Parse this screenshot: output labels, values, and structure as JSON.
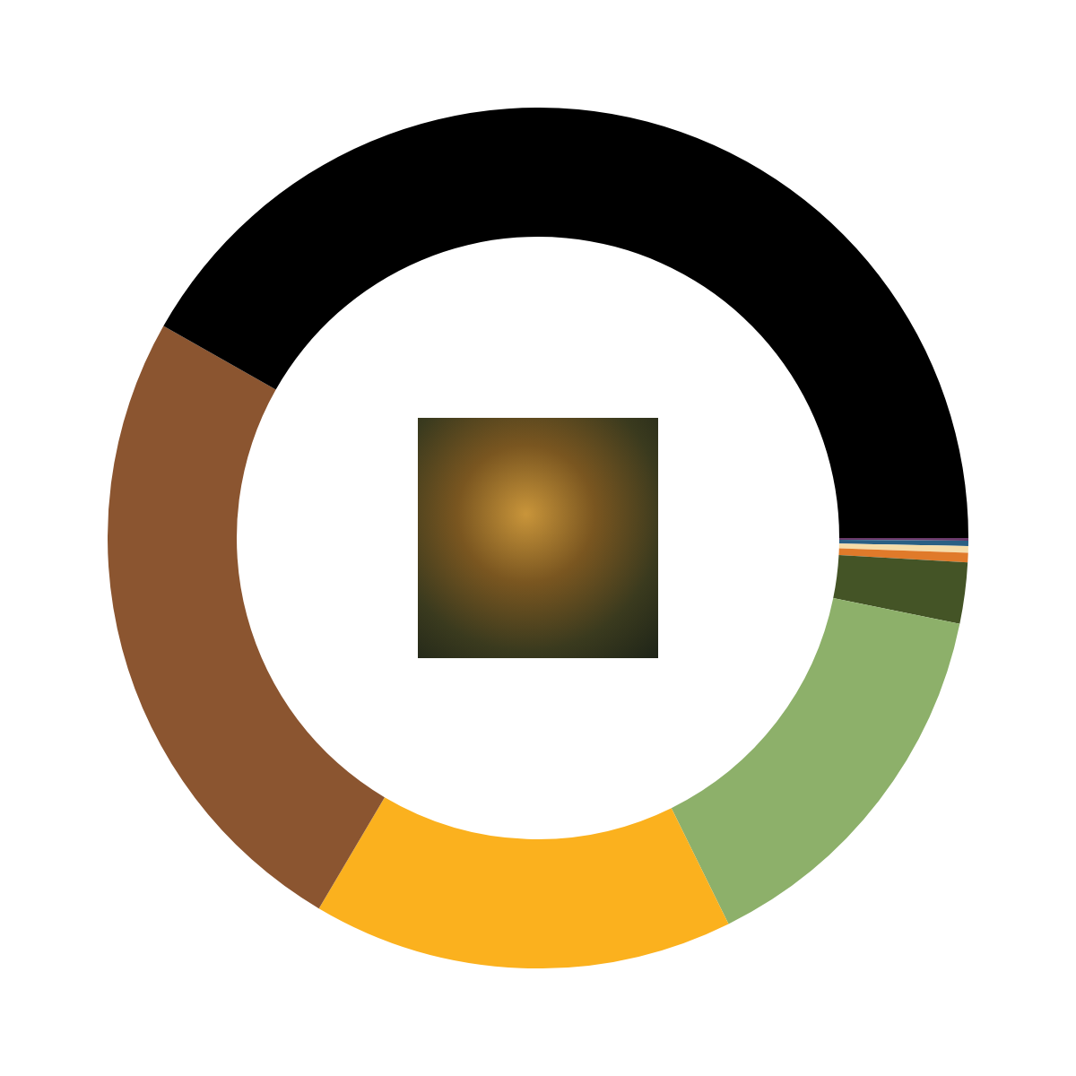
{
  "chart_data": {
    "type": "doughnut",
    "values": [
      0.1,
      0.2,
      0.25,
      0.35,
      2.3,
      14.5,
      15.8,
      24.7,
      41.8
    ],
    "colors": [
      "#6a3a6a",
      "#2a5f84",
      "#f6dca8",
      "#e07a2a",
      "#445426",
      "#8db06a",
      "#fbb11e",
      "#8b5530",
      "#000000"
    ]
  }
}
